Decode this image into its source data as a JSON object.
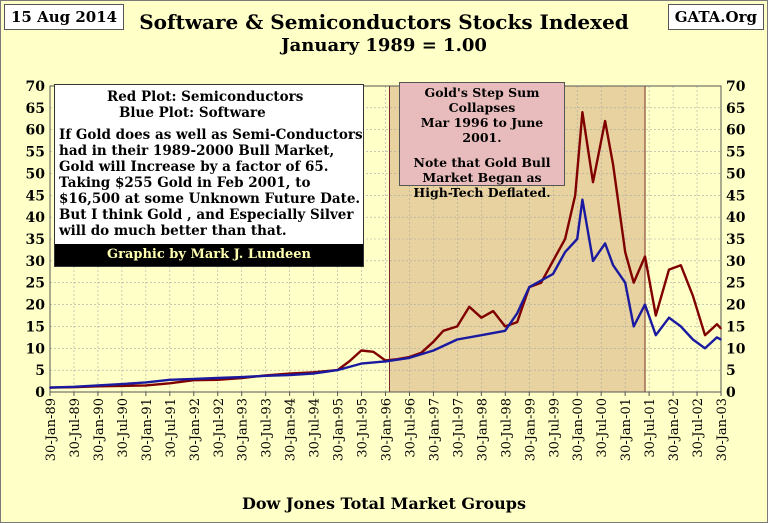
{
  "header": {
    "date_tag": "15 Aug 2014",
    "site_tag": "GATA.Org",
    "title": "Software & Semiconductors Stocks Indexed",
    "subtitle": "January 1989 = 1.00"
  },
  "legend_box": {
    "red_label": "Red Plot: Semiconductors",
    "blue_label": "Blue Plot: Software",
    "text": "If Gold does as well as Semi-Conductors had in their 1989-2000 Bull Market, Gold will Increase by a factor of 65.  Taking $255 Gold in Feb 2001, to $16,500 at some Unknown Future Date.  But I think Gold , and Especially Silver will do much better than that.",
    "credit": "Graphic by Mark J. Lundeen"
  },
  "step_box": {
    "line1": "Gold's Step Sum",
    "line2": "Collapses",
    "line3": "Mar 1996 to  June 2001.",
    "line4": "Note that Gold Bull",
    "line5": "Market Began as",
    "line6": "High-Tech Deflated."
  },
  "footer": "Dow Jones Total Market Groups",
  "chart_data": {
    "type": "line",
    "ylim": [
      0,
      70
    ],
    "yticks": [
      0,
      5,
      10,
      15,
      20,
      25,
      30,
      35,
      40,
      45,
      50,
      55,
      60,
      65,
      70
    ],
    "xlim": [
      "1989-01-30",
      "2003-01-30"
    ],
    "xtick_labels": [
      "30-Jan-89",
      "30-Jul-89",
      "30-Jan-90",
      "30-Jul-90",
      "30-Jan-91",
      "30-Jul-91",
      "30-Jan-92",
      "30-Jul-92",
      "30-Jan-93",
      "30-Jul-93",
      "30-Jan-94",
      "30-Jul-94",
      "30-Jan-95",
      "30-Jul-95",
      "30-Jan-96",
      "30-Jul-96",
      "30-Jan-97",
      "30-Jul-97",
      "30-Jan-98",
      "30-Jul-98",
      "30-Jan-99",
      "30-Jul-99",
      "30-Jan-00",
      "30-Jul-00",
      "30-Jan-01",
      "30-Jul-01",
      "30-Jan-02",
      "30-Jul-02",
      "30-Jan-03"
    ],
    "grid": true,
    "shaded_period": [
      "1996-03-01",
      "2001-06-30"
    ],
    "colors": {
      "semiconductors": "#800000",
      "software": "#1a1aa0",
      "shade": "#e8d2a0",
      "plot_bg": "#ffffc8"
    },
    "series": [
      {
        "name": "Semiconductors",
        "color": "#800000",
        "points": [
          [
            "1989-01-30",
            1.0
          ],
          [
            "1989-07-30",
            1.1
          ],
          [
            "1990-01-30",
            1.3
          ],
          [
            "1990-07-30",
            1.4
          ],
          [
            "1991-01-30",
            1.5
          ],
          [
            "1991-07-30",
            2.0
          ],
          [
            "1992-01-30",
            2.7
          ],
          [
            "1992-07-30",
            2.8
          ],
          [
            "1993-01-30",
            3.2
          ],
          [
            "1993-07-30",
            3.8
          ],
          [
            "1994-01-30",
            4.2
          ],
          [
            "1994-07-30",
            4.5
          ],
          [
            "1995-01-30",
            5.0
          ],
          [
            "1995-04-30",
            7.0
          ],
          [
            "1995-07-30",
            9.5
          ],
          [
            "1995-10-30",
            9.2
          ],
          [
            "1996-01-30",
            7.2
          ],
          [
            "1996-04-30",
            7.5
          ],
          [
            "1996-07-30",
            8.0
          ],
          [
            "1996-10-30",
            9.0
          ],
          [
            "1997-01-30",
            11.5
          ],
          [
            "1997-04-15",
            14.0
          ],
          [
            "1997-07-30",
            15.0
          ],
          [
            "1997-10-30",
            19.5
          ],
          [
            "1998-01-30",
            17.0
          ],
          [
            "1998-04-30",
            18.5
          ],
          [
            "1998-07-30",
            15.0
          ],
          [
            "1998-10-30",
            16.0
          ],
          [
            "1999-01-30",
            24.0
          ],
          [
            "1999-04-30",
            25.0
          ],
          [
            "1999-07-30",
            30.0
          ],
          [
            "1999-10-30",
            35.0
          ],
          [
            "2000-01-15",
            45.0
          ],
          [
            "2000-03-10",
            64.0
          ],
          [
            "2000-05-30",
            48.0
          ],
          [
            "2000-08-30",
            62.0
          ],
          [
            "2000-10-30",
            52.0
          ],
          [
            "2001-01-30",
            32.0
          ],
          [
            "2001-04-05",
            25.0
          ],
          [
            "2001-06-30",
            31.0
          ],
          [
            "2001-09-20",
            17.5
          ],
          [
            "2001-12-30",
            28.0
          ],
          [
            "2002-03-30",
            29.0
          ],
          [
            "2002-06-30",
            22.0
          ],
          [
            "2002-09-30",
            13.0
          ],
          [
            "2002-12-30",
            15.5
          ],
          [
            "2003-01-30",
            14.5
          ]
        ]
      },
      {
        "name": "Software",
        "color": "#1a1aa0",
        "points": [
          [
            "1989-01-30",
            1.0
          ],
          [
            "1989-07-30",
            1.2
          ],
          [
            "1990-01-30",
            1.5
          ],
          [
            "1990-07-30",
            1.8
          ],
          [
            "1991-01-30",
            2.2
          ],
          [
            "1991-07-30",
            2.8
          ],
          [
            "1992-01-30",
            3.0
          ],
          [
            "1992-07-30",
            3.2
          ],
          [
            "1993-01-30",
            3.4
          ],
          [
            "1993-07-30",
            3.7
          ],
          [
            "1994-01-30",
            3.9
          ],
          [
            "1994-07-30",
            4.2
          ],
          [
            "1995-01-30",
            5.0
          ],
          [
            "1995-07-30",
            6.5
          ],
          [
            "1996-01-30",
            7.0
          ],
          [
            "1996-07-30",
            7.8
          ],
          [
            "1997-01-30",
            9.5
          ],
          [
            "1997-07-30",
            12.0
          ],
          [
            "1998-01-30",
            13.0
          ],
          [
            "1998-07-30",
            14.0
          ],
          [
            "1998-10-30",
            18.0
          ],
          [
            "1999-01-30",
            24.0
          ],
          [
            "1999-07-30",
            27.0
          ],
          [
            "1999-10-30",
            32.0
          ],
          [
            "2000-01-30",
            35.0
          ],
          [
            "2000-03-10",
            44.0
          ],
          [
            "2000-05-30",
            30.0
          ],
          [
            "2000-08-30",
            34.0
          ],
          [
            "2000-10-30",
            29.0
          ],
          [
            "2001-01-30",
            25.0
          ],
          [
            "2001-04-05",
            15.0
          ],
          [
            "2001-06-30",
            20.0
          ],
          [
            "2001-09-20",
            13.0
          ],
          [
            "2001-12-30",
            17.0
          ],
          [
            "2002-03-30",
            15.0
          ],
          [
            "2002-06-30",
            12.0
          ],
          [
            "2002-09-30",
            10.0
          ],
          [
            "2002-12-30",
            12.5
          ],
          [
            "2003-01-30",
            12.0
          ]
        ]
      }
    ]
  }
}
